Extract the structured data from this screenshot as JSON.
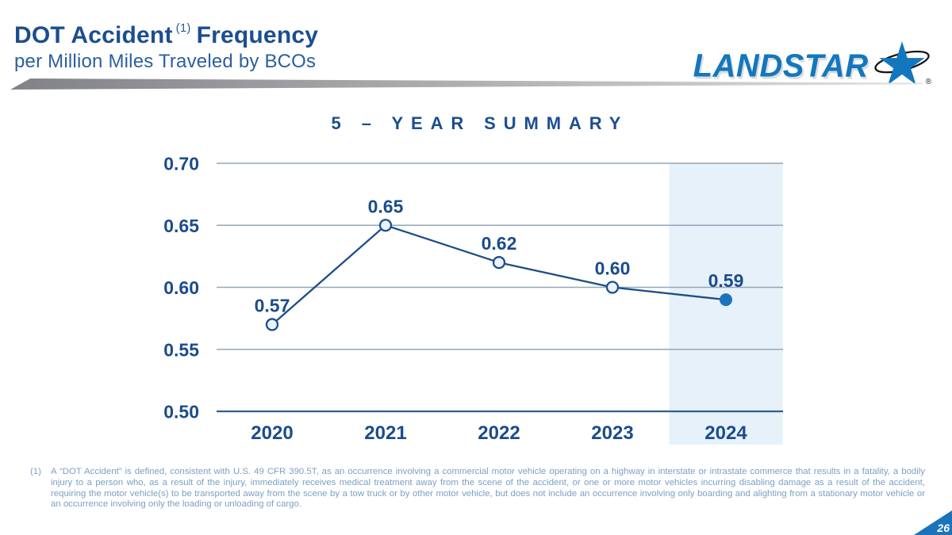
{
  "slide": {
    "title_main": "DOT Accident",
    "title_ref": "(1)",
    "title_tail": "Frequency",
    "subtitle": "per Million Miles Traveled by BCOs",
    "page_number": "26"
  },
  "logo": {
    "text": "LANDSTAR",
    "registered_mark": "®",
    "brand_blue": "#1277be"
  },
  "chart_data": {
    "type": "line",
    "title": "5 – YEAR SUMMARY",
    "categories": [
      "2020",
      "2021",
      "2022",
      "2023",
      "2024"
    ],
    "values": [
      0.57,
      0.65,
      0.62,
      0.6,
      0.59
    ],
    "ylim": [
      0.5,
      0.7
    ],
    "yticks": [
      0.7,
      0.65,
      0.6,
      0.55,
      0.5
    ],
    "grid": true,
    "legend": false,
    "highlight_last_category": true,
    "marker_style": "open circles with final year filled",
    "colors": {
      "line": "#1d4e89",
      "marker_open_fill": "#eaf3fb",
      "marker_filled": "#1b74ba",
      "gridline": "#92a7b8",
      "axis": "#2e5f8f",
      "highlight_band": "#e6f1fa",
      "labels": "#1b4c8c"
    }
  },
  "footnote": {
    "marker": "(1)",
    "text": "A “DOT Accident” is defined, consistent with U.S. 49 CFR 390.5T, as an occurrence involving a commercial motor vehicle operating on a highway in interstate or intrastate commerce that results in a fatality, a bodily injury to a person who, as a result of the injury, immediately receives medical treatment away from the scene of the accident, or one or more motor vehicles incurring disabling damage as a result of the accident, requiring the motor vehicle(s) to be transported away from the scene by a tow truck or by other motor vehicle, but does not include an occurrence involving only boarding and alighting from a stationary motor vehicle or an occurrence involving only the loading or unloading of cargo."
  }
}
